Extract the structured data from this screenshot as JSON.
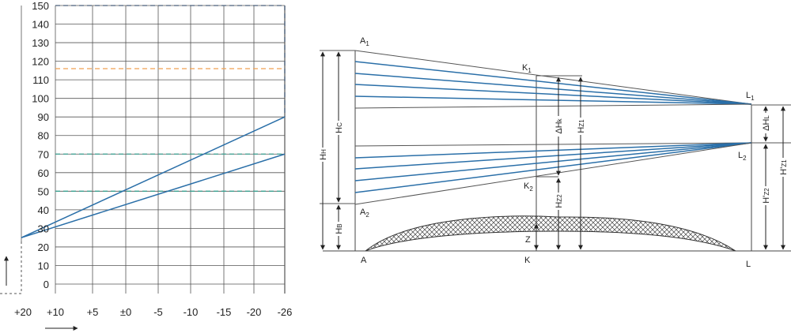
{
  "chart_data": {
    "type": "line",
    "x_ticks": [
      "+20",
      "+10",
      "+5",
      "±0",
      "-5",
      "-10",
      "-15",
      "-20",
      "-26"
    ],
    "y_ticks": [
      0,
      10,
      20,
      30,
      40,
      50,
      60,
      70,
      80,
      90,
      100,
      110,
      120,
      130,
      140,
      150
    ],
    "ylim": [
      0,
      150
    ],
    "grid": true,
    "series": [
      {
        "x": [
          "+20",
          "-26"
        ],
        "y": [
          25,
          90
        ]
      },
      {
        "x": [
          "+20",
          "-26"
        ],
        "y": [
          25,
          70
        ]
      }
    ],
    "reference_lines": [
      {
        "y": 150,
        "color": "#4a5f7a"
      },
      {
        "y": 116,
        "color": "#f0a050"
      },
      {
        "y": 70,
        "color": "#3aa090"
      },
      {
        "y": 50,
        "color": "#3aa090"
      }
    ]
  },
  "colors": {
    "line": "#2a6fa8",
    "grid": "#555555",
    "axis": "#333333"
  },
  "diagram": {
    "points": {
      "A1": {
        "main": "A",
        "sub": "1"
      },
      "A2": {
        "main": "A",
        "sub": "2"
      },
      "A": "A",
      "K1": {
        "main": "K",
        "sub": "1"
      },
      "K2": {
        "main": "K",
        "sub": "2"
      },
      "K": "K",
      "L1": {
        "main": "L",
        "sub": "1"
      },
      "L2": {
        "main": "L",
        "sub": "2"
      },
      "L": "L"
    },
    "dimensions": {
      "HH": {
        "main": "H",
        "sub": "H"
      },
      "HC": {
        "main": "H",
        "sub": "C"
      },
      "HB": {
        "main": "H",
        "sub": "B"
      },
      "dHk": {
        "main": "ΔH",
        "sub": "k"
      },
      "Hz1": {
        "main": "H",
        "sub": "Z1"
      },
      "Hz2": {
        "main": "H",
        "sub": "Z2"
      },
      "Z": "Z",
      "dHL": {
        "main": "ΔH",
        "sub": "L"
      },
      "Hpz2": {
        "main": "H'",
        "sub": "Z2"
      },
      "Hpz1": {
        "main": "H'",
        "sub": "Z1"
      }
    }
  }
}
